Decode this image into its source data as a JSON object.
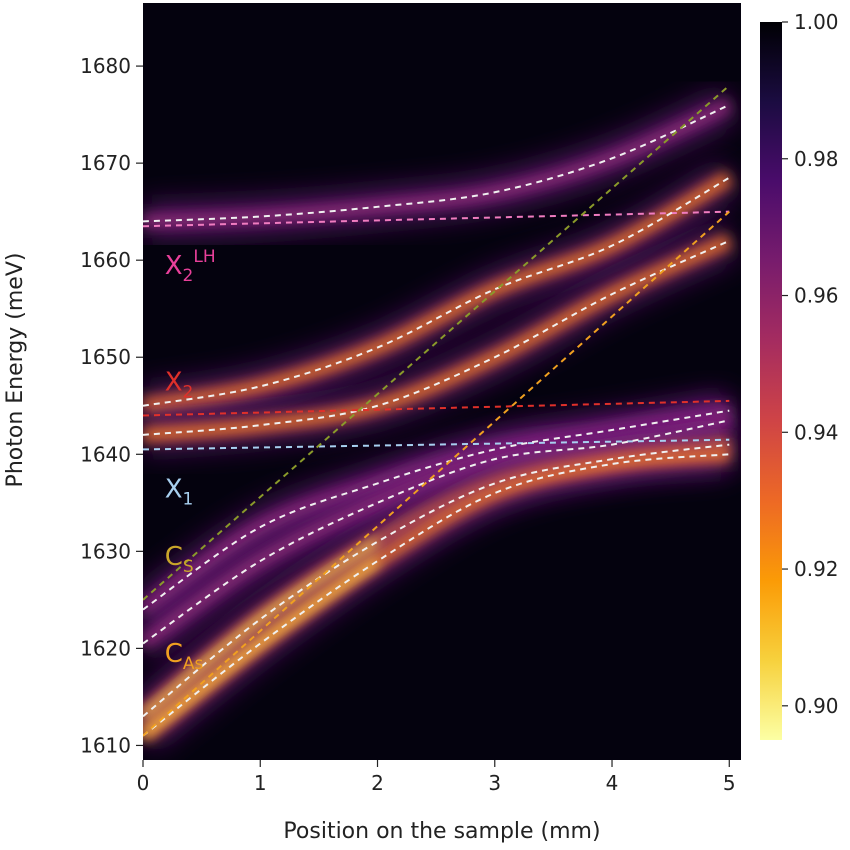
{
  "chart_data": {
    "type": "heatmap",
    "title": "",
    "xlabel": "Position on the sample (mm)",
    "ylabel": "Photon Energy (meV)",
    "xlim": [
      0,
      5.1
    ],
    "ylim": [
      1608.5,
      1686.5
    ],
    "xticks": [
      "0",
      "1",
      "2",
      "3",
      "4",
      "5"
    ],
    "yticks": [
      "1610",
      "1620",
      "1630",
      "1640",
      "1650",
      "1660",
      "1670",
      "1680"
    ],
    "colorbar": {
      "range": [
        0.895,
        1.0
      ],
      "ticks": [
        "0.90",
        "0.92",
        "0.94",
        "0.96",
        "0.98",
        "1.00"
      ],
      "colormap": "inferno (reversed)",
      "stops": [
        "#000004",
        "#1b0c41",
        "#4a0c6b",
        "#781c6d",
        "#a52c60",
        "#cf4446",
        "#ed6925",
        "#fb9b06",
        "#f7d13d",
        "#fcffa4"
      ]
    },
    "annotations": [
      {
        "main": "X",
        "sub": "2",
        "sup": "LH",
        "color": "#e8409a",
        "x": 0.1,
        "y": 1659.5
      },
      {
        "main": "X",
        "sub": "2",
        "sup": "",
        "color": "#e0302a",
        "x": 0.1,
        "y": 1647.5
      },
      {
        "main": "X",
        "sub": "1",
        "sup": "",
        "color": "#a8d0f0",
        "x": 0.1,
        "y": 1636.5
      },
      {
        "main": "C",
        "sub": "S",
        "sup": "",
        "color": "#c9a62a",
        "x": 0.1,
        "y": 1629.5
      },
      {
        "main": "C",
        "sub": "As",
        "sup": "",
        "color": "#f0a020",
        "x": 0.1,
        "y": 1619.5
      }
    ],
    "series": [
      {
        "color": "#f0f0f0",
        "kind": "polariton",
        "bright": false,
        "x": [
          0,
          1,
          2,
          3,
          4,
          5
        ],
        "y": [
          1664,
          1664.5,
          1665.5,
          1667,
          1670.5,
          1676
        ]
      },
      {
        "color": "#f07cc0",
        "kind": "reference",
        "x": [
          0,
          5
        ],
        "y": [
          1663.5,
          1665
        ]
      },
      {
        "color": "#f0f0f0",
        "kind": "polariton",
        "bright": true,
        "x": [
          0,
          1,
          2,
          3,
          4,
          5
        ],
        "y": [
          1645,
          1647,
          1651,
          1657,
          1661.5,
          1668.5
        ]
      },
      {
        "color": "#f0f0f0",
        "kind": "polariton",
        "bright": true,
        "x": [
          0,
          1,
          2,
          3,
          4,
          5
        ],
        "y": [
          1642,
          1643,
          1645,
          1650,
          1656.5,
          1662
        ]
      },
      {
        "color": "#e0302a",
        "kind": "reference",
        "x": [
          0,
          5
        ],
        "y": [
          1644,
          1645.5
        ]
      },
      {
        "color": "#a8d0f0",
        "kind": "reference",
        "x": [
          0,
          5
        ],
        "y": [
          1640.5,
          1641.5
        ]
      },
      {
        "color": "#f0f0f0",
        "kind": "polariton",
        "bright": false,
        "x": [
          0,
          1,
          2,
          3,
          4,
          5
        ],
        "y": [
          1624,
          1632.5,
          1637,
          1640.5,
          1642.5,
          1644.5
        ]
      },
      {
        "color": "#f0f0f0",
        "kind": "polariton",
        "bright": false,
        "x": [
          0,
          1,
          2,
          3,
          4,
          5
        ],
        "y": [
          1620.5,
          1629,
          1635,
          1639.5,
          1641,
          1643.5
        ]
      },
      {
        "color": "#f0f0f0",
        "kind": "polariton",
        "bright": true,
        "x": [
          0,
          1,
          2,
          3,
          4,
          5
        ],
        "y": [
          1613,
          1623,
          1631,
          1637,
          1639.5,
          1641
        ]
      },
      {
        "color": "#f0f0f0",
        "kind": "polariton",
        "bright": true,
        "x": [
          0,
          1,
          2,
          3,
          4,
          5
        ],
        "y": [
          1611,
          1620.5,
          1629,
          1636,
          1639,
          1640
        ]
      },
      {
        "color": "#8a9a2a",
        "kind": "reference",
        "x": [
          0,
          5
        ],
        "y": [
          1625,
          1678
        ]
      },
      {
        "color": "#f0a020",
        "kind": "reference",
        "x": [
          0,
          5
        ],
        "y": [
          1611,
          1665
        ]
      }
    ]
  }
}
